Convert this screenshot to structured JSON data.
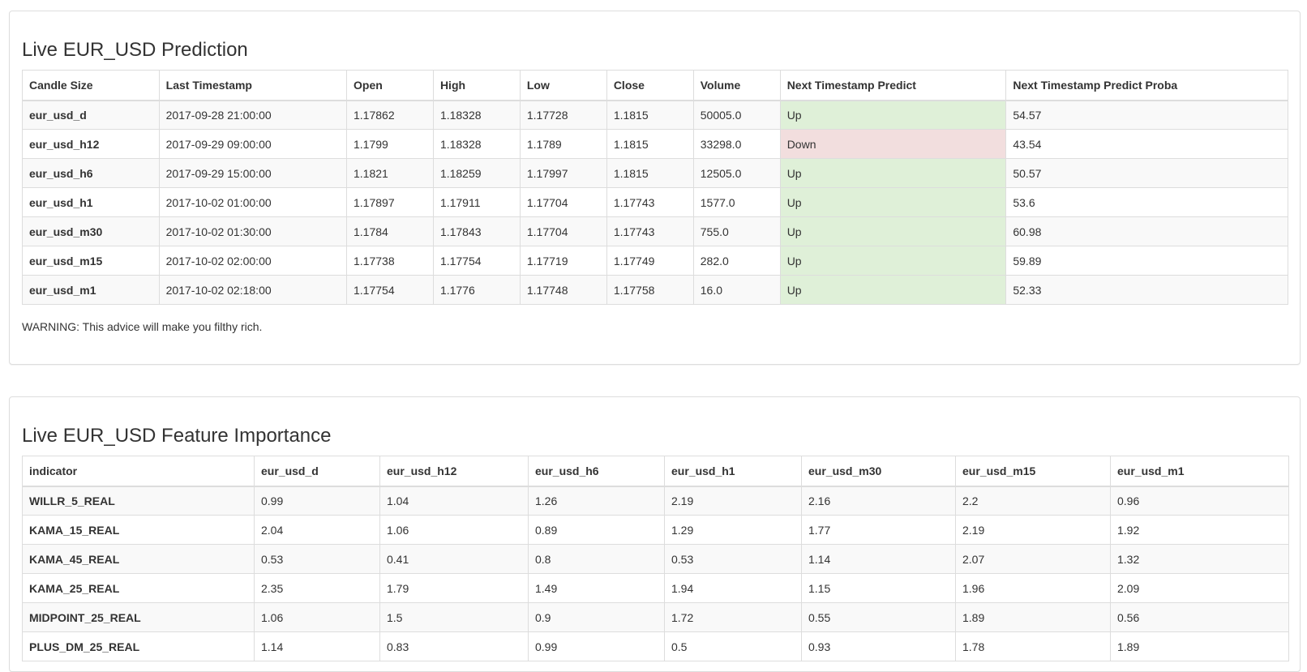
{
  "prediction": {
    "title": "Live EUR_USD Prediction",
    "headers": [
      "Candle Size",
      "Last Timestamp",
      "Open",
      "High",
      "Low",
      "Close",
      "Volume",
      "Next Timestamp Predict",
      "Next Timestamp Predict Proba"
    ],
    "rows": [
      {
        "candle": "eur_usd_d",
        "ts": "2017-09-28 21:00:00",
        "open": "1.17862",
        "high": "1.18328",
        "low": "1.17728",
        "close": "1.1815",
        "volume": "50005.0",
        "predict": "Up",
        "proba": "54.57"
      },
      {
        "candle": "eur_usd_h12",
        "ts": "2017-09-29 09:00:00",
        "open": "1.1799",
        "high": "1.18328",
        "low": "1.1789",
        "close": "1.1815",
        "volume": "33298.0",
        "predict": "Down",
        "proba": "43.54"
      },
      {
        "candle": "eur_usd_h6",
        "ts": "2017-09-29 15:00:00",
        "open": "1.1821",
        "high": "1.18259",
        "low": "1.17997",
        "close": "1.1815",
        "volume": "12505.0",
        "predict": "Up",
        "proba": "50.57"
      },
      {
        "candle": "eur_usd_h1",
        "ts": "2017-10-02 01:00:00",
        "open": "1.17897",
        "high": "1.17911",
        "low": "1.17704",
        "close": "1.17743",
        "volume": "1577.0",
        "predict": "Up",
        "proba": "53.6"
      },
      {
        "candle": "eur_usd_m30",
        "ts": "2017-10-02 01:30:00",
        "open": "1.1784",
        "high": "1.17843",
        "low": "1.17704",
        "close": "1.17743",
        "volume": "755.0",
        "predict": "Up",
        "proba": "60.98"
      },
      {
        "candle": "eur_usd_m15",
        "ts": "2017-10-02 02:00:00",
        "open": "1.17738",
        "high": "1.17754",
        "low": "1.17719",
        "close": "1.17749",
        "volume": "282.0",
        "predict": "Up",
        "proba": "59.89"
      },
      {
        "candle": "eur_usd_m1",
        "ts": "2017-10-02 02:18:00",
        "open": "1.17754",
        "high": "1.1776",
        "low": "1.17748",
        "close": "1.17758",
        "volume": "16.0",
        "predict": "Up",
        "proba": "52.33"
      }
    ],
    "warning": "WARNING: This advice will make you filthy rich."
  },
  "importance": {
    "title": "Live EUR_USD Feature Importance",
    "headers": [
      "indicator",
      "eur_usd_d",
      "eur_usd_h12",
      "eur_usd_h6",
      "eur_usd_h1",
      "eur_usd_m30",
      "eur_usd_m15",
      "eur_usd_m1"
    ],
    "rows": [
      {
        "indicator": "WILLR_5_REAL",
        "values": [
          "0.99",
          "1.04",
          "1.26",
          "2.19",
          "2.16",
          "2.2",
          "0.96"
        ]
      },
      {
        "indicator": "KAMA_15_REAL",
        "values": [
          "2.04",
          "1.06",
          "0.89",
          "1.29",
          "1.77",
          "2.19",
          "1.92"
        ]
      },
      {
        "indicator": "KAMA_45_REAL",
        "values": [
          "0.53",
          "0.41",
          "0.8",
          "0.53",
          "1.14",
          "2.07",
          "1.32"
        ]
      },
      {
        "indicator": "KAMA_25_REAL",
        "values": [
          "2.35",
          "1.79",
          "1.49",
          "1.94",
          "1.15",
          "1.96",
          "2.09"
        ]
      },
      {
        "indicator": "MIDPOINT_25_REAL",
        "values": [
          "1.06",
          "1.5",
          "0.9",
          "1.72",
          "0.55",
          "1.89",
          "0.56"
        ]
      },
      {
        "indicator": "PLUS_DM_25_REAL",
        "values": [
          "1.14",
          "0.83",
          "0.99",
          "0.5",
          "0.93",
          "1.78",
          "1.89"
        ]
      }
    ]
  },
  "colors": {
    "up_bg": "#dff0d8",
    "down_bg": "#f2dede",
    "stripe": "#f9f9f9",
    "border": "#dddddd"
  }
}
